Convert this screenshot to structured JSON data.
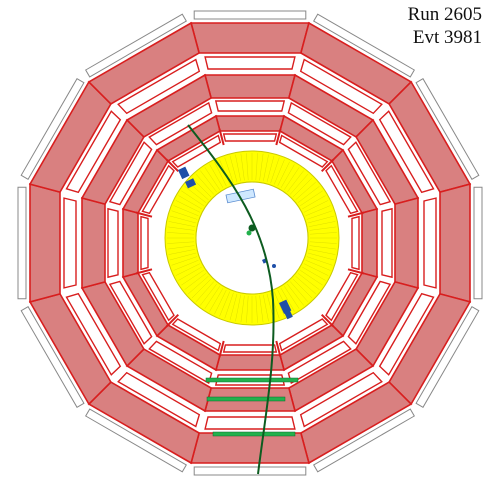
{
  "labels": {
    "run": "Run 2605",
    "event": "Evt 3981"
  },
  "colors": {
    "muon_chamber_fill": "#d98080",
    "muon_chamber_stroke": "#d81e1e",
    "outer_frame_stroke": "#888888",
    "calorimeter_fill": "#ffff00",
    "calorimeter_stroke": "#c9c900",
    "track": "#0d5c20",
    "hit_green": "#22b14c",
    "hit_blue": "#1f4fa8",
    "background": "#ffffff"
  },
  "detector": {
    "sectors": 12,
    "view": "transverse"
  }
}
